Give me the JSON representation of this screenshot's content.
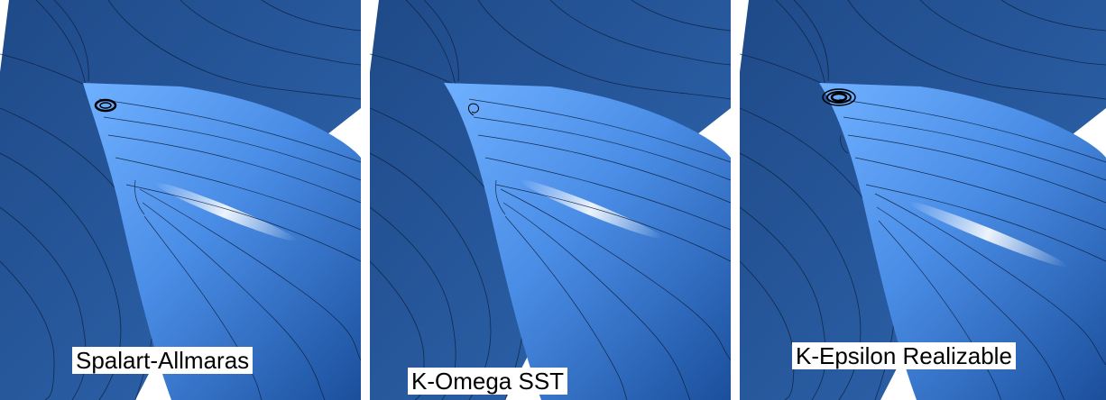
{
  "panels": [
    {
      "label": "Spalart-Allmaras"
    },
    {
      "label": "K-Omega SST"
    },
    {
      "label": "K-Epsilon Realizable"
    }
  ],
  "colors": {
    "background_blue": "#2a5a9e",
    "surface_blue": "#4d8fe0",
    "highlight": "#eef6ff",
    "streamline": "#0a1a33"
  }
}
